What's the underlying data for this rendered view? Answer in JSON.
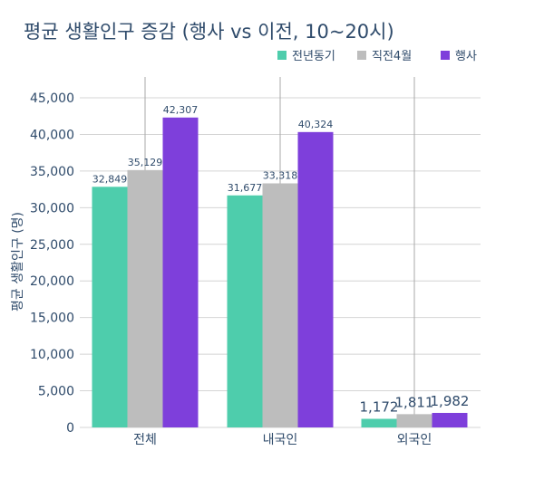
{
  "colors": {
    "s0": "#4ecdac",
    "s1": "#bdbdbd",
    "s2": "#7e3fdb",
    "text": "#2f4b6b",
    "grid": "#d4d4d4"
  },
  "chart_data": {
    "type": "bar",
    "title": "평균 생활인구 증감 (행사 vs 이전, 10~20시)",
    "xlabel": "",
    "ylabel": "평균 생활인구 (명)",
    "ylim": [
      0,
      45000
    ],
    "yticks": [
      "0",
      "5,000",
      "10,000",
      "15,000",
      "20,000",
      "25,000",
      "30,000",
      "35,000",
      "40,000",
      "45,000"
    ],
    "ytick_values": [
      0,
      5000,
      10000,
      15000,
      20000,
      25000,
      30000,
      35000,
      40000,
      45000
    ],
    "categories": [
      "전체",
      "내국인",
      "외국인"
    ],
    "series": [
      {
        "name": "전년동기",
        "values": [
          32849,
          31677,
          1172
        ],
        "labels": [
          "32,849",
          "31,677",
          "1,172"
        ]
      },
      {
        "name": "직전4월",
        "values": [
          35129,
          33318,
          1811
        ],
        "labels": [
          "35,129",
          "33,318",
          "1,811"
        ]
      },
      {
        "name": "행사",
        "values": [
          42307,
          40324,
          1982
        ],
        "labels": [
          "42,307",
          "40,324",
          "1,982"
        ]
      }
    ],
    "legend_position": "top-right",
    "grid": true
  }
}
